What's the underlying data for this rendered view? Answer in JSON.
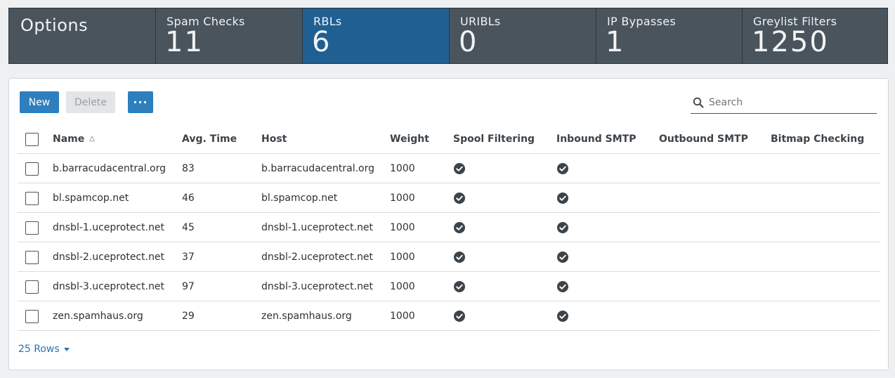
{
  "statbar": {
    "options_title": "Options",
    "stats": [
      {
        "label": "Spam Checks",
        "value": "11"
      },
      {
        "label": "RBLs",
        "value": "6"
      },
      {
        "label": "URIBLs",
        "value": "0"
      },
      {
        "label": "IP Bypasses",
        "value": "1"
      },
      {
        "label": "Greylist Filters",
        "value": "1250"
      }
    ],
    "active_stat": "RBLs",
    "colors": {
      "bar": "#4a545c",
      "active": "#1f5f92"
    }
  },
  "toolbar": {
    "new_label": "New",
    "delete_label": "Delete",
    "more_label": "···",
    "search_placeholder": "Search"
  },
  "table": {
    "columns": [
      "Name",
      "Avg. Time",
      "Host",
      "Weight",
      "Spool Filtering",
      "Inbound SMTP",
      "Outbound SMTP",
      "Bitmap Checking"
    ],
    "sort_column": "Name",
    "sort_direction": "ascending",
    "rows": [
      {
        "name": "b.barracudacentral.org",
        "avg_time": "83",
        "host": "b.barracudacentral.org",
        "weight": "1000",
        "spool_filtering": true,
        "inbound_smtp": true,
        "outbound_smtp": false,
        "bitmap_checking": false
      },
      {
        "name": "bl.spamcop.net",
        "avg_time": "46",
        "host": "bl.spamcop.net",
        "weight": "1000",
        "spool_filtering": true,
        "inbound_smtp": true,
        "outbound_smtp": false,
        "bitmap_checking": false
      },
      {
        "name": "dnsbl-1.uceprotect.net",
        "avg_time": "45",
        "host": "dnsbl-1.uceprotect.net",
        "weight": "1000",
        "spool_filtering": true,
        "inbound_smtp": true,
        "outbound_smtp": false,
        "bitmap_checking": false
      },
      {
        "name": "dnsbl-2.uceprotect.net",
        "avg_time": "37",
        "host": "dnsbl-2.uceprotect.net",
        "weight": "1000",
        "spool_filtering": true,
        "inbound_smtp": true,
        "outbound_smtp": false,
        "bitmap_checking": false
      },
      {
        "name": "dnsbl-3.uceprotect.net",
        "avg_time": "97",
        "host": "dnsbl-3.uceprotect.net",
        "weight": "1000",
        "spool_filtering": true,
        "inbound_smtp": true,
        "outbound_smtp": false,
        "bitmap_checking": false
      },
      {
        "name": "zen.spamhaus.org",
        "avg_time": "29",
        "host": "zen.spamhaus.org",
        "weight": "1000",
        "spool_filtering": true,
        "inbound_smtp": true,
        "outbound_smtp": false,
        "bitmap_checking": false
      }
    ]
  },
  "footer": {
    "rows_label": "25 Rows"
  }
}
